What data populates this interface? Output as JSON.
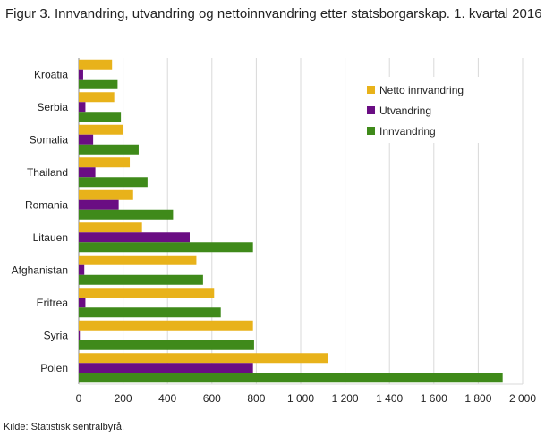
{
  "title": "Figur 3. Innvandring, utvandring og nettoinnvandring etter statsborgarskap. 1. kvartal 2016",
  "source": "Kilde: Statistisk sentralbyrå.",
  "chart_data": {
    "type": "bar",
    "orientation": "horizontal",
    "categories": [
      "Kroatia",
      "Serbia",
      "Somalia",
      "Thailand",
      "Romania",
      "Litauen",
      "Afghanistan",
      "Eritrea",
      "Syria",
      "Polen"
    ],
    "series": [
      {
        "name": "Netto innvandring",
        "color": "#e8b21a",
        "values": [
          150,
          160,
          200,
          230,
          245,
          285,
          530,
          610,
          785,
          1125
        ]
      },
      {
        "name": "Utvandring",
        "color": "#6a0d83",
        "values": [
          20,
          30,
          65,
          75,
          180,
          500,
          25,
          30,
          5,
          785
        ]
      },
      {
        "name": "Innvandring",
        "color": "#3f8a1a",
        "values": [
          175,
          190,
          270,
          310,
          425,
          785,
          560,
          640,
          790,
          1910
        ]
      }
    ],
    "xlim": [
      0,
      2000
    ],
    "xticks": [
      0,
      200,
      400,
      600,
      800,
      1000,
      1200,
      1400,
      1600,
      1800,
      2000
    ],
    "xtick_labels": [
      "0",
      "200",
      "400",
      "600",
      "800",
      "1 000",
      "1 200",
      "1 400",
      "1 600",
      "1 800",
      "2 000"
    ],
    "grid": true,
    "legend_position": "top-right"
  }
}
